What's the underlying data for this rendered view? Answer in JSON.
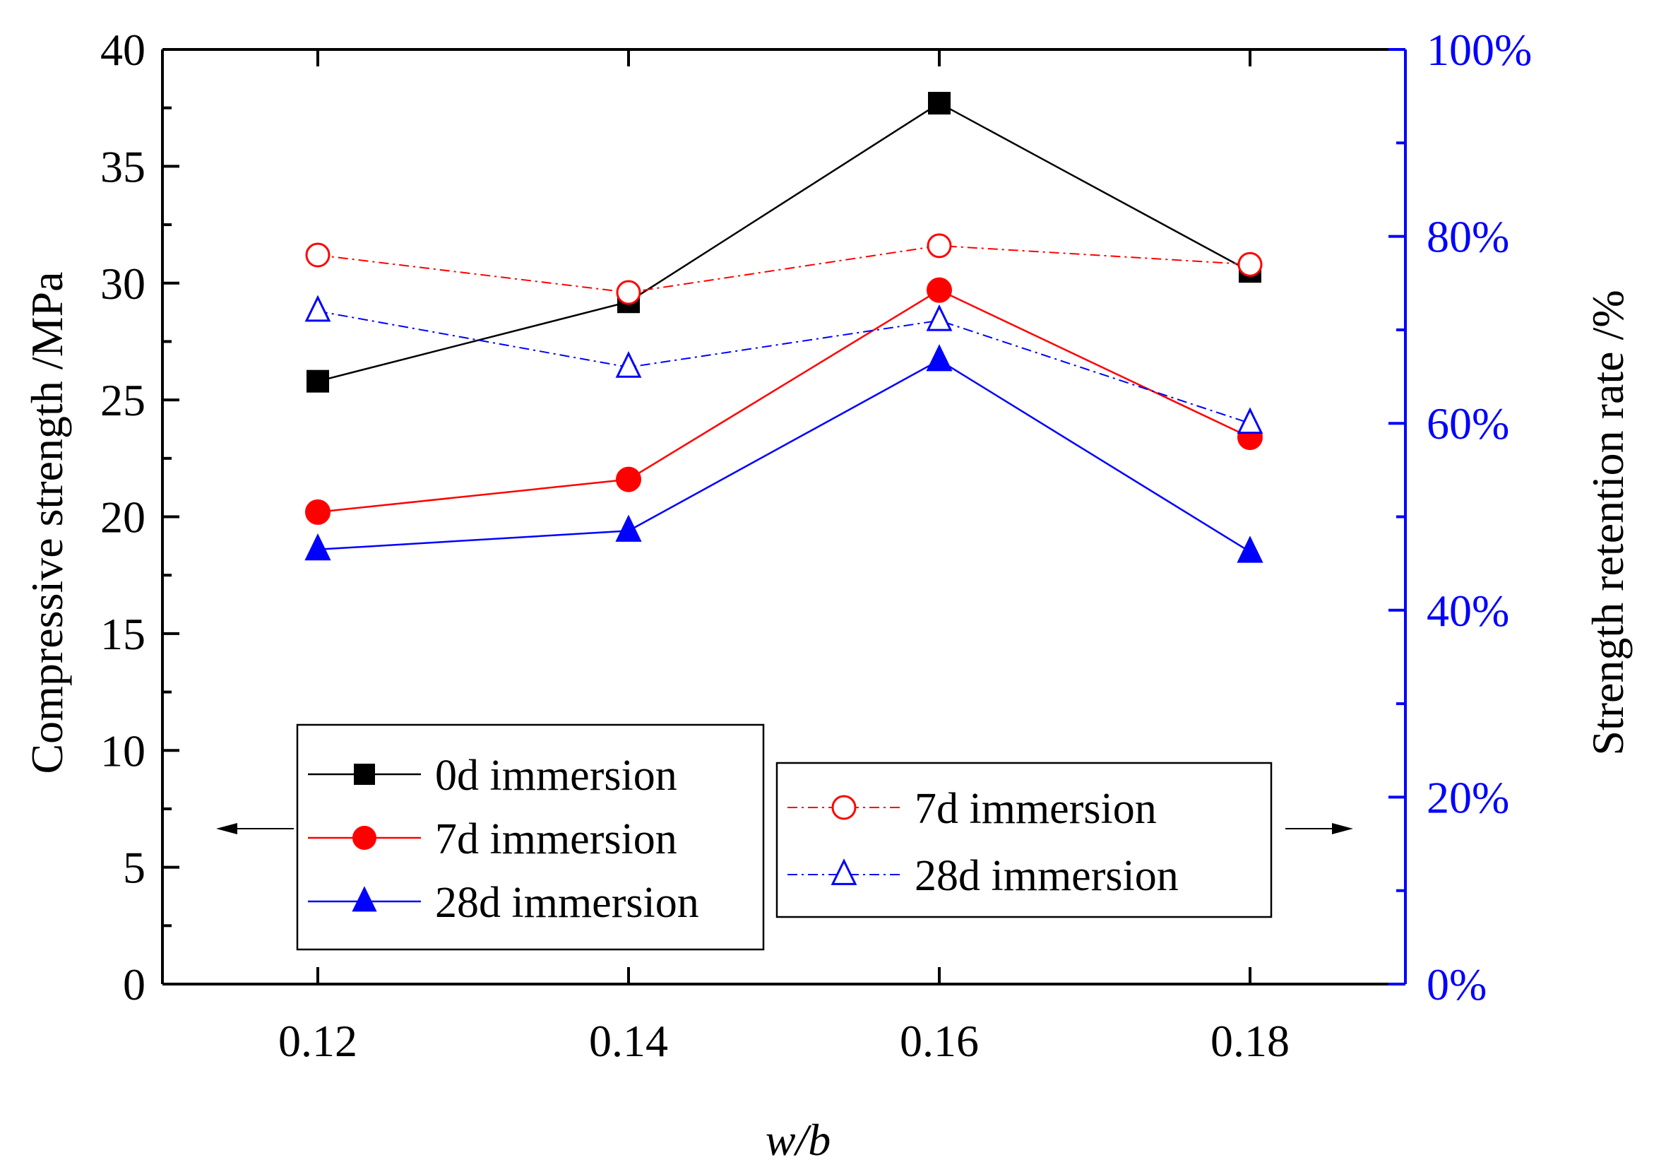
{
  "chart_data": {
    "type": "line",
    "xlabel": "w/b",
    "ylabel_left": "Compressive strength /MPa",
    "ylabel_right": "Strength retention rate /%",
    "x": [
      0.12,
      0.14,
      0.16,
      0.18
    ],
    "x_tick_labels": [
      "0.12",
      "0.14",
      "0.16",
      "0.18"
    ],
    "xlim": [
      0.11,
      0.19
    ],
    "ylim_left": [
      0,
      40
    ],
    "left_tick_labels": [
      "0",
      "5",
      "10",
      "15",
      "20",
      "25",
      "30",
      "35",
      "40"
    ],
    "ylim_right": [
      0,
      100
    ],
    "right_tick_labels": [
      "0%",
      "20%",
      "40%",
      "60%",
      "80%",
      "100%"
    ],
    "series": [
      {
        "name": "0d immersion",
        "axis": "left",
        "values": [
          25.8,
          29.2,
          37.7,
          30.5
        ],
        "marker": "square-filled",
        "color": "#000000",
        "dash": "solid"
      },
      {
        "name": "7d immersion",
        "axis": "left",
        "values": [
          20.2,
          21.6,
          29.7,
          23.4
        ],
        "marker": "circle-filled",
        "color": "#ff0000",
        "dash": "solid"
      },
      {
        "name": "28d immersion",
        "axis": "left",
        "values": [
          18.6,
          19.4,
          26.7,
          18.5
        ],
        "marker": "triangle-filled",
        "color": "#0000ff",
        "dash": "solid"
      },
      {
        "name": "7d immersion",
        "axis": "right",
        "values": [
          78,
          74,
          79,
          77
        ],
        "marker": "circle-open",
        "color": "#ff0000",
        "dash": "dashdot"
      },
      {
        "name": "28d immersion",
        "axis": "right",
        "values": [
          72,
          66,
          71,
          60
        ],
        "marker": "triangle-open",
        "color": "#0000ff",
        "dash": "dashdot"
      }
    ],
    "legend_left": {
      "position": "lower-left",
      "entries": [
        "0d immersion",
        "7d immersion",
        "28d immersion"
      ],
      "arrow": "left"
    },
    "legend_right": {
      "position": "lower-right",
      "entries": [
        "7d immersion",
        "28d immersion"
      ],
      "arrow": "right"
    }
  },
  "colors": {
    "right_axis": "#0000ff",
    "left_axis": "#000000"
  }
}
